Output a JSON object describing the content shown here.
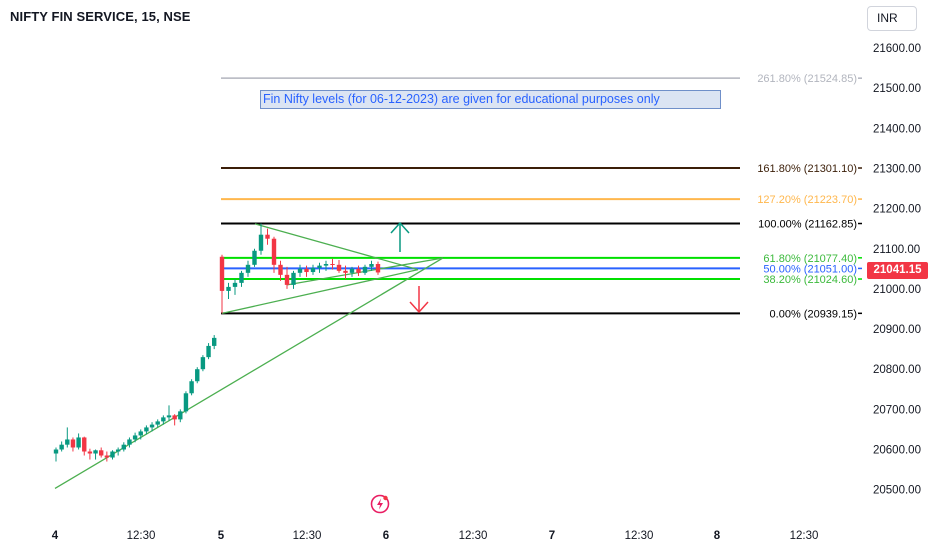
{
  "header": {
    "title": "NIFTY FIN SERVICE, 15, NSE",
    "currency": "INR"
  },
  "annotation": {
    "note": "Fin Nifty levels (for 06-12-2023) are given for educational purposes only"
  },
  "last_price": {
    "label": "21041.15",
    "color": "#f23645"
  },
  "colors": {
    "up": "#089981",
    "down": "#f23645",
    "trend": "#4caf50",
    "fib_line_blue": "#2962ff"
  },
  "chart_data": {
    "type": "candlestick",
    "title": "NIFTY FIN SERVICE, 15, NSE",
    "y_range": [
      20460,
      21620
    ],
    "y_ticks": [
      20500,
      20600,
      20700,
      20800,
      20900,
      21000,
      21100,
      21200,
      21300,
      21400,
      21500,
      21600
    ],
    "y_tick_labels": [
      "20500.00",
      "20600.00",
      "20700.00",
      "20800.00",
      "20900.00",
      "21000.00",
      "21100.00",
      "21200.00",
      "21300.00",
      "21400.00",
      "21500.00",
      "21600.00"
    ],
    "x_labels": [
      "4",
      "12:30",
      "5",
      "12:30",
      "6",
      "12:30",
      "7",
      "12:30",
      "8",
      "12:30"
    ],
    "candles_day4": [
      {
        "o": 20590,
        "h": 20605,
        "l": 20570,
        "c": 20600
      },
      {
        "o": 20600,
        "h": 20620,
        "l": 20595,
        "c": 20612
      },
      {
        "o": 20612,
        "h": 20655,
        "l": 20605,
        "c": 20625
      },
      {
        "o": 20625,
        "h": 20630,
        "l": 20595,
        "c": 20605
      },
      {
        "o": 20605,
        "h": 20640,
        "l": 20600,
        "c": 20630
      },
      {
        "o": 20630,
        "h": 20632,
        "l": 20585,
        "c": 20595
      },
      {
        "o": 20595,
        "h": 20602,
        "l": 20575,
        "c": 20590
      },
      {
        "o": 20590,
        "h": 20600,
        "l": 20575,
        "c": 20598
      },
      {
        "o": 20598,
        "h": 20605,
        "l": 20580,
        "c": 20585
      },
      {
        "o": 20585,
        "h": 20595,
        "l": 20570,
        "c": 20580
      },
      {
        "o": 20580,
        "h": 20598,
        "l": 20575,
        "c": 20595
      },
      {
        "o": 20595,
        "h": 20605,
        "l": 20585,
        "c": 20600
      },
      {
        "o": 20600,
        "h": 20618,
        "l": 20595,
        "c": 20612
      },
      {
        "o": 20612,
        "h": 20630,
        "l": 20605,
        "c": 20625
      },
      {
        "o": 20625,
        "h": 20642,
        "l": 20618,
        "c": 20635
      },
      {
        "o": 20635,
        "h": 20650,
        "l": 20625,
        "c": 20645
      },
      {
        "o": 20645,
        "h": 20660,
        "l": 20638,
        "c": 20655
      },
      {
        "o": 20655,
        "h": 20668,
        "l": 20645,
        "c": 20662
      },
      {
        "o": 20662,
        "h": 20675,
        "l": 20655,
        "c": 20670
      },
      {
        "o": 20670,
        "h": 20685,
        "l": 20662,
        "c": 20680
      },
      {
        "o": 20680,
        "h": 20710,
        "l": 20672,
        "c": 20685
      },
      {
        "o": 20685,
        "h": 20688,
        "l": 20660,
        "c": 20675
      },
      {
        "o": 20675,
        "h": 20700,
        "l": 20668,
        "c": 20695
      },
      {
        "o": 20695,
        "h": 20745,
        "l": 20690,
        "c": 20740
      },
      {
        "o": 20740,
        "h": 20775,
        "l": 20735,
        "c": 20770
      },
      {
        "o": 20770,
        "h": 20805,
        "l": 20765,
        "c": 20800
      },
      {
        "o": 20800,
        "h": 20835,
        "l": 20795,
        "c": 20830
      },
      {
        "o": 20830,
        "h": 20865,
        "l": 20825,
        "c": 20858
      },
      {
        "o": 20858,
        "h": 20885,
        "l": 20850,
        "c": 20878
      }
    ],
    "candles_day5": [
      {
        "o": 21080,
        "h": 21085,
        "l": 20939,
        "c": 20995
      },
      {
        "o": 20995,
        "h": 21015,
        "l": 20975,
        "c": 21005
      },
      {
        "o": 21005,
        "h": 21025,
        "l": 20985,
        "c": 21015
      },
      {
        "o": 21015,
        "h": 21045,
        "l": 21005,
        "c": 21040
      },
      {
        "o": 21040,
        "h": 21070,
        "l": 21030,
        "c": 21060
      },
      {
        "o": 21060,
        "h": 21100,
        "l": 21055,
        "c": 21095
      },
      {
        "o": 21095,
        "h": 21163,
        "l": 21085,
        "c": 21135
      },
      {
        "o": 21135,
        "h": 21150,
        "l": 21110,
        "c": 21125
      },
      {
        "o": 21125,
        "h": 21130,
        "l": 21040,
        "c": 21060
      },
      {
        "o": 21060,
        "h": 21070,
        "l": 21020,
        "c": 21035
      },
      {
        "o": 21035,
        "h": 21055,
        "l": 21000,
        "c": 21010
      },
      {
        "o": 21010,
        "h": 21045,
        "l": 21000,
        "c": 21040
      },
      {
        "o": 21040,
        "h": 21060,
        "l": 21030,
        "c": 21050
      },
      {
        "o": 21050,
        "h": 21058,
        "l": 21030,
        "c": 21042
      },
      {
        "o": 21042,
        "h": 21060,
        "l": 21035,
        "c": 21052
      },
      {
        "o": 21052,
        "h": 21065,
        "l": 21040,
        "c": 21058
      },
      {
        "o": 21058,
        "h": 21070,
        "l": 21045,
        "c": 21062
      },
      {
        "o": 21062,
        "h": 21075,
        "l": 21048,
        "c": 21060
      },
      {
        "o": 21060,
        "h": 21072,
        "l": 21040,
        "c": 21045
      },
      {
        "o": 21045,
        "h": 21058,
        "l": 21025,
        "c": 21040
      },
      {
        "o": 21040,
        "h": 21055,
        "l": 21030,
        "c": 21050
      },
      {
        "o": 21050,
        "h": 21058,
        "l": 21032,
        "c": 21040
      },
      {
        "o": 21040,
        "h": 21060,
        "l": 21035,
        "c": 21055
      },
      {
        "o": 21055,
        "h": 21070,
        "l": 21045,
        "c": 21062
      },
      {
        "o": 21062,
        "h": 21068,
        "l": 21035,
        "c": 21041
      }
    ],
    "fib_levels": [
      {
        "ratio": "261.80%",
        "value": 21524.85,
        "label": "261.80% (21524.85)",
        "color": "#b2b5be"
      },
      {
        "ratio": "161.80%",
        "value": 21301.1,
        "label": "161.80% (21301.10)",
        "color": "#3b1e08"
      },
      {
        "ratio": "127.20%",
        "value": 21223.7,
        "label": "127.20% (21223.70)",
        "color": "#ffb74d"
      },
      {
        "ratio": "100.00%",
        "value": 21162.85,
        "label": "100.00% (21162.85)",
        "color": "#000000"
      },
      {
        "ratio": "61.80%",
        "value": 21077.4,
        "label": "61.80% (21077.40)",
        "color": "#00e000"
      },
      {
        "ratio": "50.00%",
        "value": 21051.0,
        "label": "50.00% (21051.00)",
        "color": "#2962ff"
      },
      {
        "ratio": "38.20%",
        "value": 21024.6,
        "label": "38.20% (21024.60)",
        "color": "#00e000"
      },
      {
        "ratio": "0.00%",
        "value": 20939.15,
        "label": "0.00% (20939.15)",
        "color": "#000000"
      }
    ],
    "arrows": [
      {
        "direction": "up",
        "color": "#089981"
      },
      {
        "direction": "down",
        "color": "#f23645"
      }
    ]
  }
}
